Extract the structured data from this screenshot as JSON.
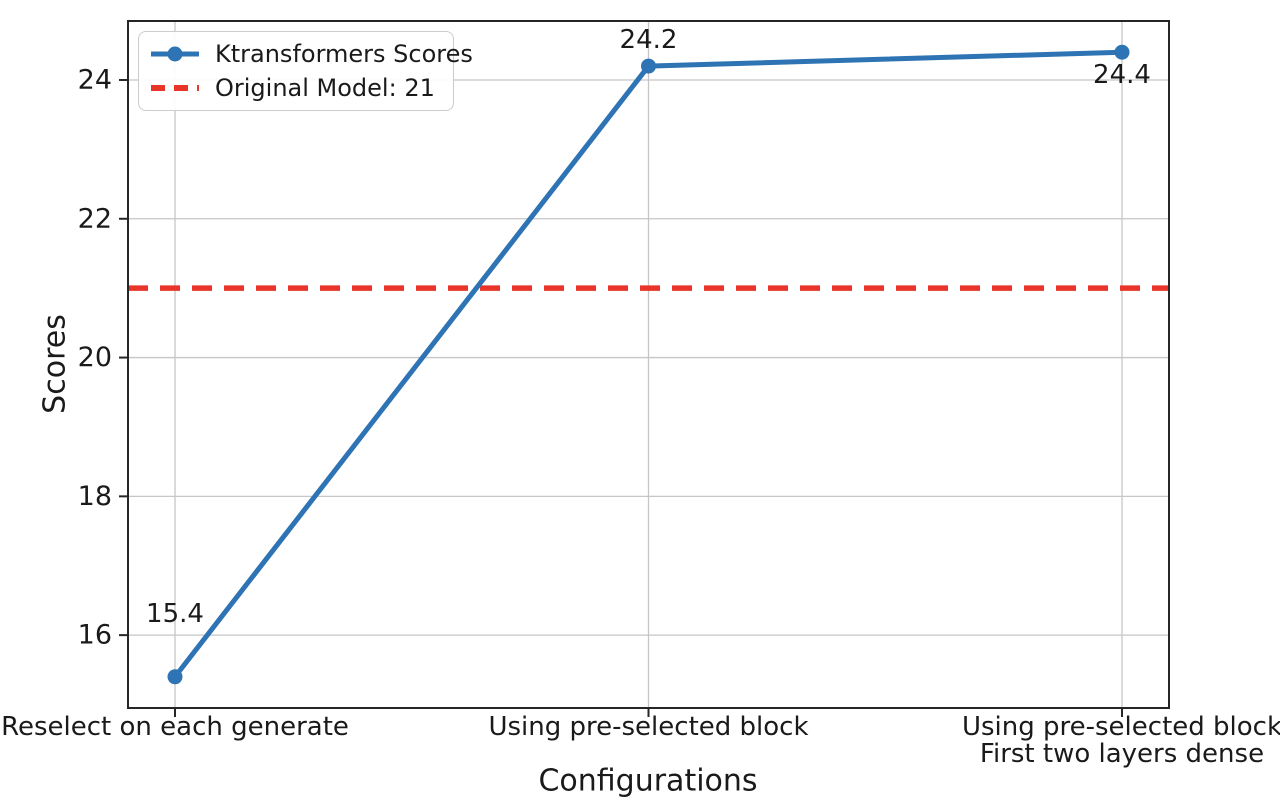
{
  "chart_data": {
    "type": "line",
    "title": "",
    "xlabel": "Configurations",
    "ylabel": "Scores",
    "categories": [
      "Reselect on each generate",
      "Using pre-selected block",
      "Using pre-selected block\nFirst two layers dense"
    ],
    "series": [
      {
        "name": "Ktransformers Scores",
        "values": [
          15.4,
          24.2,
          24.4
        ],
        "color": "#2e74b4",
        "marker": "circle",
        "line_width": 5
      }
    ],
    "reference_line": {
      "name": "Original Model: 21",
      "value": 21,
      "color": "#e9342a",
      "style": "dashed"
    },
    "annotations": [
      {
        "text": "15.4",
        "index": 0,
        "dy": -63
      },
      {
        "text": "24.2",
        "index": 1,
        "dy": -26
      },
      {
        "text": "24.4",
        "index": 2,
        "dy": 23
      }
    ],
    "yticks": [
      16,
      18,
      20,
      22,
      24
    ],
    "ylim": [
      14.95,
      24.85
    ],
    "grid": true,
    "legend_position": "upper left",
    "colors": {
      "grid": "#c6c6c6",
      "spine": "#262626",
      "text": "#1a1a1a"
    }
  }
}
